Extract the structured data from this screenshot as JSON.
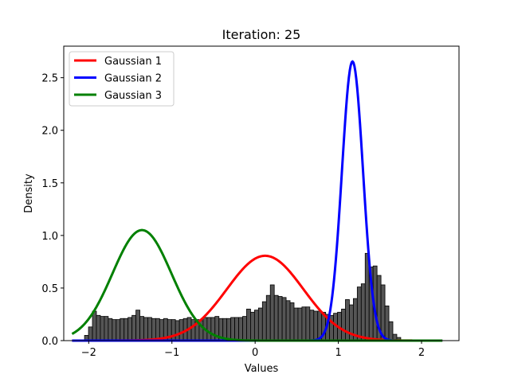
{
  "chart_data": {
    "type": "histogram+line",
    "title": "Iteration: 25",
    "xlabel": "Values",
    "ylabel": "Density",
    "xlim": [
      -2.3,
      2.45
    ],
    "ylim": [
      0,
      2.8
    ],
    "xticks": [
      -2,
      -1,
      0,
      1,
      2
    ],
    "xtick_labels": [
      "−2",
      "−1",
      "0",
      "1",
      "2"
    ],
    "yticks": [
      0.0,
      0.5,
      1.0,
      1.5,
      2.0,
      2.5
    ],
    "ytick_labels": [
      "0.0",
      "0.5",
      "1.0",
      "1.5",
      "2.0",
      "2.5"
    ],
    "grid": false,
    "legend_position": "upper-left",
    "histogram": {
      "color": "#555555",
      "edgecolor": "#000000",
      "x_start": -2.05,
      "bin_width": 0.0475,
      "densities": [
        0.05,
        0.13,
        0.28,
        0.24,
        0.23,
        0.23,
        0.21,
        0.2,
        0.2,
        0.21,
        0.21,
        0.22,
        0.24,
        0.29,
        0.23,
        0.22,
        0.22,
        0.21,
        0.21,
        0.2,
        0.21,
        0.2,
        0.2,
        0.19,
        0.2,
        0.21,
        0.22,
        0.2,
        0.2,
        0.19,
        0.22,
        0.22,
        0.22,
        0.23,
        0.21,
        0.21,
        0.21,
        0.22,
        0.22,
        0.22,
        0.23,
        0.3,
        0.27,
        0.29,
        0.31,
        0.37,
        0.43,
        0.53,
        0.43,
        0.42,
        0.41,
        0.38,
        0.36,
        0.31,
        0.31,
        0.32,
        0.32,
        0.29,
        0.28,
        0.28,
        0.27,
        0.25,
        0.24,
        0.26,
        0.27,
        0.3,
        0.39,
        0.34,
        0.4,
        0.51,
        0.54,
        0.83,
        0.7,
        0.71,
        0.62,
        0.53,
        0.33,
        0.18,
        0.06,
        0.03
      ]
    },
    "series": [
      {
        "name": "Gaussian 1",
        "color": "#ff0000",
        "mu": 0.12,
        "sigma": 0.46,
        "weight": 0.93
      },
      {
        "name": "Gaussian 2",
        "color": "#0000ff",
        "mu": 1.17,
        "sigma": 0.127,
        "weight": 0.845
      },
      {
        "name": "Gaussian 3",
        "color": "#008000",
        "mu": -1.36,
        "sigma": 0.355,
        "weight": 0.935
      }
    ],
    "curve_x_range": [
      -2.2,
      2.25
    ]
  }
}
